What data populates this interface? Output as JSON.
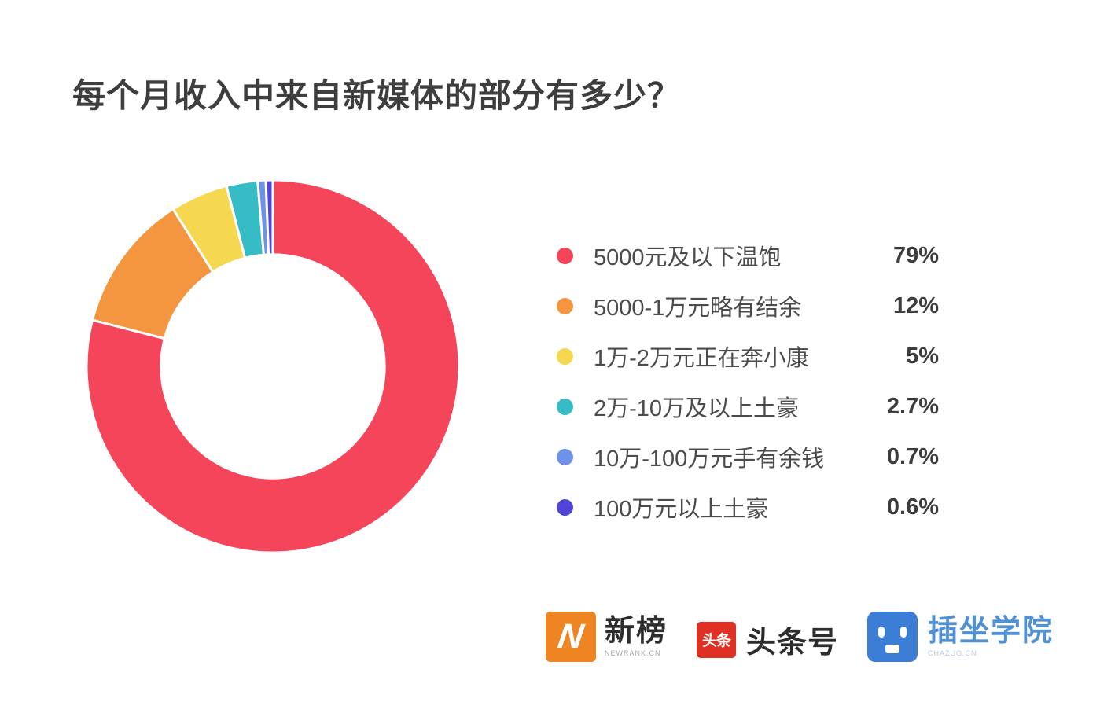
{
  "title": "每个月收入中来自新媒体的部分有多少？",
  "chart_data": {
    "type": "pie",
    "subtype": "donut",
    "title": "每个月收入中来自新媒体的部分有多少？",
    "start_angle_deg": 0,
    "direction": "clockwise",
    "inner_radius_ratio": 0.6,
    "legend_position": "right",
    "categories": [
      "5000元及以下温饱",
      "5000-1万元略有结余",
      "1万-2万元正在奔小康",
      "2万-10万及以上土豪",
      "10万-100万元手有余钱",
      "100万元以上土豪"
    ],
    "values": [
      79,
      12,
      5,
      2.7,
      0.7,
      0.6
    ],
    "value_labels": [
      "79%",
      "12%",
      "5%",
      "2.7%",
      "0.7%",
      "0.6%"
    ],
    "colors": [
      "#F5455A",
      "#F4953F",
      "#F5D850",
      "#35BCC4",
      "#6E92E8",
      "#5044D9"
    ],
    "slice_gap_color": "#ffffff"
  },
  "footer": {
    "logos": [
      {
        "name": "newrank",
        "icon": "newrank-n-icon",
        "icon_letter": "N",
        "icon_color": "#EE8422",
        "text": "新榜",
        "subtext": "NEWRANK.CN"
      },
      {
        "name": "toutiao",
        "icon": "toutiao-icon",
        "icon_text": "头条",
        "icon_color": "#DE3123",
        "text": "头条号"
      },
      {
        "name": "chazuo",
        "icon": "chazuo-face-icon",
        "icon_color": "#3C7ED6",
        "text": "插坐学院",
        "subtext": "CHAZUO.CN"
      }
    ]
  }
}
